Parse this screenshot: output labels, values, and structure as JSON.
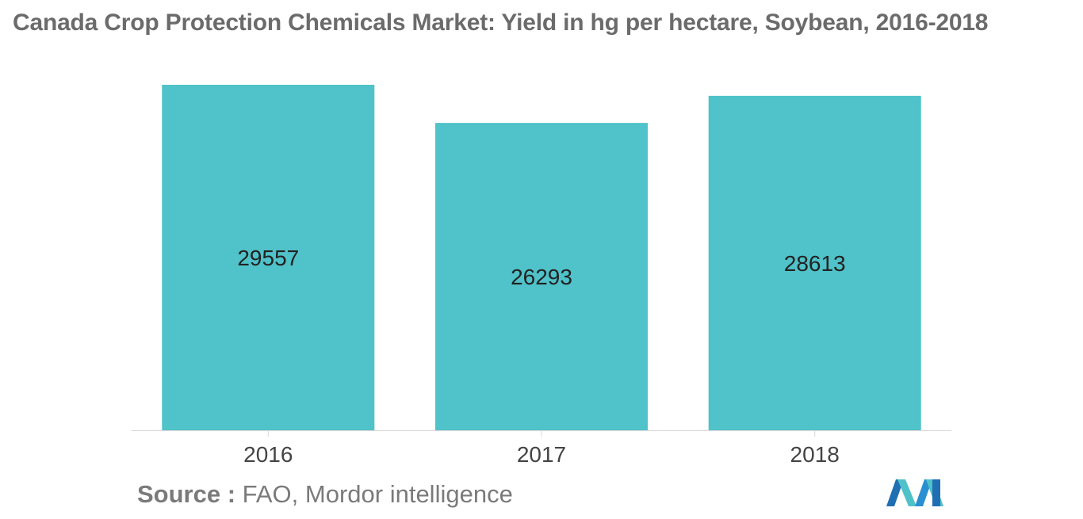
{
  "title": "Canada Crop Protection Chemicals Market: Yield in hg per hectare, Soybean, 2016-2018",
  "source": {
    "label": "Source :",
    "text": "FAO, Mordor intelligence"
  },
  "logo": {
    "icon": "mordor-intelligence-logo",
    "colors": [
      "#1f6fb2",
      "#4fc1c9",
      "#2a8fd0"
    ]
  },
  "chart_data": {
    "type": "bar",
    "title": "Canada Crop Protection Chemicals Market: Yield in hg per hectare, Soybean, 2016-2018",
    "categories": [
      "2016",
      "2017",
      "2018"
    ],
    "values": [
      29557,
      26293,
      28613
    ],
    "data_labels": [
      "29557",
      "26293",
      "28613"
    ],
    "xlabel": "",
    "ylabel": "",
    "ylim": [
      0,
      29557
    ],
    "grid": false,
    "legend": "none",
    "bar_color": "#50c2c9",
    "axis_color": "#d9d9d9"
  }
}
